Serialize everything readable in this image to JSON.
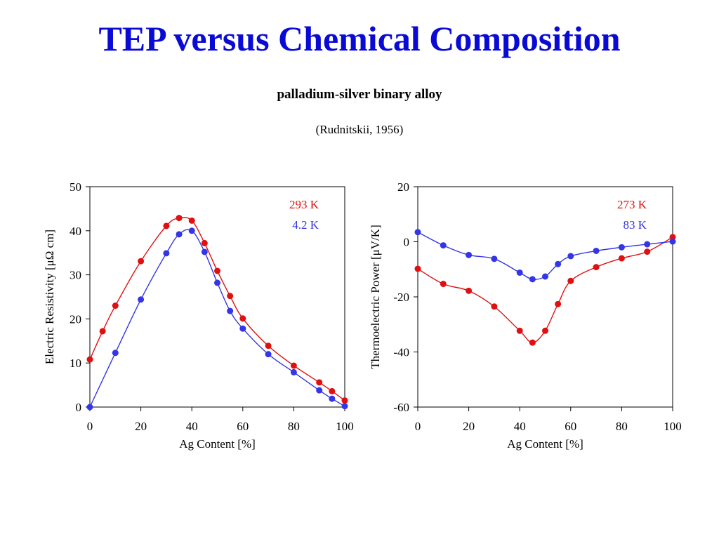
{
  "header": {
    "title": "TEP versus Chemical Composition",
    "subtitle": "palladium-silver binary alloy",
    "source": "(Rudnitskii, 1956)"
  },
  "colors": {
    "title": "#0a0ad6",
    "red": "#e01010",
    "blue": "#3535e8",
    "axis": "#000000"
  },
  "chart_data": [
    {
      "type": "line",
      "xlabel": "Ag Content [%]",
      "ylabel": "Electric Resistivity [μΩ cm]",
      "xlim": [
        0,
        100
      ],
      "ylim": [
        0,
        50
      ],
      "xticks": [
        0,
        20,
        40,
        60,
        80,
        100
      ],
      "yticks": [
        0,
        10,
        20,
        30,
        40,
        50
      ],
      "legend": "top-right",
      "grid": false,
      "series": [
        {
          "name": "293 K",
          "color": "#e01010",
          "x": [
            0,
            5,
            10,
            20,
            30,
            35,
            40,
            45,
            50,
            55,
            60,
            70,
            80,
            90,
            95,
            100
          ],
          "y": [
            10.8,
            17.2,
            23.0,
            33.1,
            41.1,
            42.9,
            42.3,
            37.2,
            30.9,
            25.2,
            20.1,
            13.9,
            9.4,
            5.6,
            3.6,
            1.5
          ]
        },
        {
          "name": "4.2 K",
          "color": "#3535e8",
          "x": [
            0,
            10,
            20,
            30,
            35,
            40,
            45,
            50,
            55,
            60,
            70,
            80,
            90,
            95,
            100
          ],
          "y": [
            0,
            12.3,
            24.4,
            34.9,
            39.2,
            40.0,
            35.2,
            28.2,
            21.8,
            17.8,
            12.0,
            7.9,
            3.8,
            1.9,
            0.2
          ]
        }
      ]
    },
    {
      "type": "line",
      "xlabel": "Ag Content [%]",
      "ylabel": "Thermoelectric Power [μV/K]",
      "xlim": [
        0,
        100
      ],
      "ylim": [
        -60,
        20
      ],
      "xticks": [
        0,
        20,
        40,
        60,
        80,
        100
      ],
      "yticks": [
        -60,
        -40,
        -20,
        0,
        20
      ],
      "legend": "top-right",
      "grid": false,
      "series": [
        {
          "name": "273 K",
          "color": "#e01010",
          "x": [
            0,
            10,
            20,
            30,
            40,
            45,
            50,
            55,
            60,
            70,
            80,
            90,
            100
          ],
          "y": [
            -9.8,
            -15.3,
            -17.8,
            -23.5,
            -32.3,
            -36.6,
            -32.3,
            -22.6,
            -14.2,
            -9.2,
            -6.0,
            -3.6,
            1.7
          ]
        },
        {
          "name": "83 K",
          "color": "#3535e8",
          "x": [
            0,
            10,
            20,
            30,
            40,
            45,
            50,
            55,
            60,
            70,
            80,
            90,
            100
          ],
          "y": [
            3.5,
            -1.3,
            -4.8,
            -6.2,
            -11.2,
            -13.6,
            -12.6,
            -8.1,
            -5.2,
            -3.3,
            -2.0,
            -0.9,
            0.1
          ]
        }
      ]
    }
  ]
}
